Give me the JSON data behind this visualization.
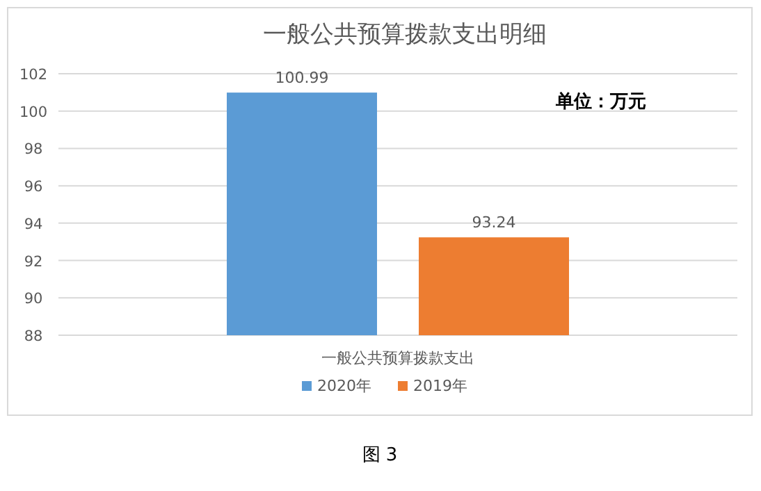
{
  "chart_data": {
    "type": "bar",
    "title": "一般公共预算拨款支出明细",
    "categories": [
      "一般公共预算拨款支出"
    ],
    "series": [
      {
        "name": "2020年",
        "color": "#5b9bd5",
        "values": [
          100.99
        ]
      },
      {
        "name": "2019年",
        "color": "#ed7d31",
        "values": [
          93.24
        ]
      }
    ],
    "ylim": [
      88,
      102
    ],
    "yticks": [
      88,
      90,
      92,
      94,
      96,
      98,
      100,
      102
    ],
    "grid": "y",
    "legend": "bottom",
    "data_labels": true,
    "annotations": [
      "单位：万元",
      "图 3"
    ]
  }
}
